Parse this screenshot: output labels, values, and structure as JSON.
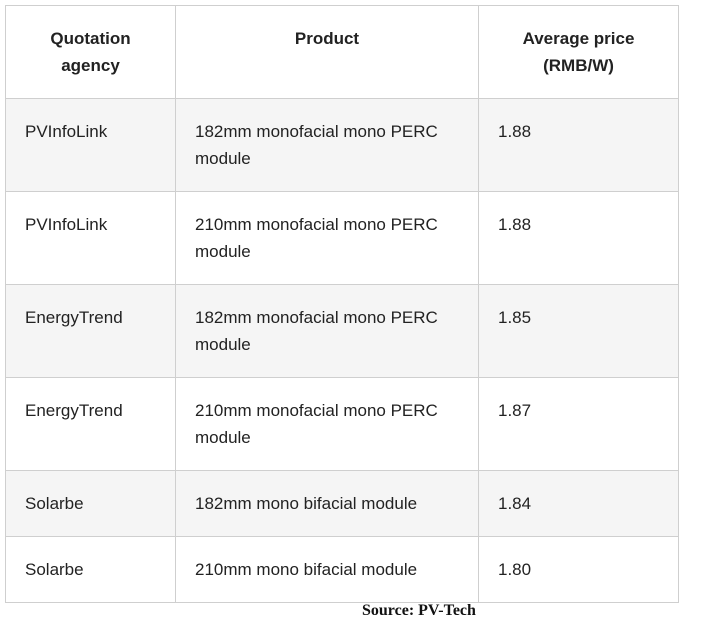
{
  "table": {
    "headers": {
      "agency": "Quotation agency",
      "product": "Product",
      "price": "Average price (RMB/W)"
    },
    "rows": [
      {
        "agency": "PVInfoLink",
        "product": "182mm monofacial mono PERC module",
        "price": "1.88"
      },
      {
        "agency": "PVInfoLink",
        "product": "210mm monofacial mono PERC module",
        "price": "1.88"
      },
      {
        "agency": "EnergyTrend",
        "product": "182mm monofacial mono PERC module",
        "price": "1.85"
      },
      {
        "agency": "EnergyTrend",
        "product": "210mm monofacial mono PERC module",
        "price": "1.87"
      },
      {
        "agency": "Solarbe",
        "product": "182mm mono bifacial module",
        "price": "1.84"
      },
      {
        "agency": "Solarbe",
        "product": "210mm mono bifacial module",
        "price": "1.80"
      }
    ]
  },
  "source": "Source: PV-Tech"
}
